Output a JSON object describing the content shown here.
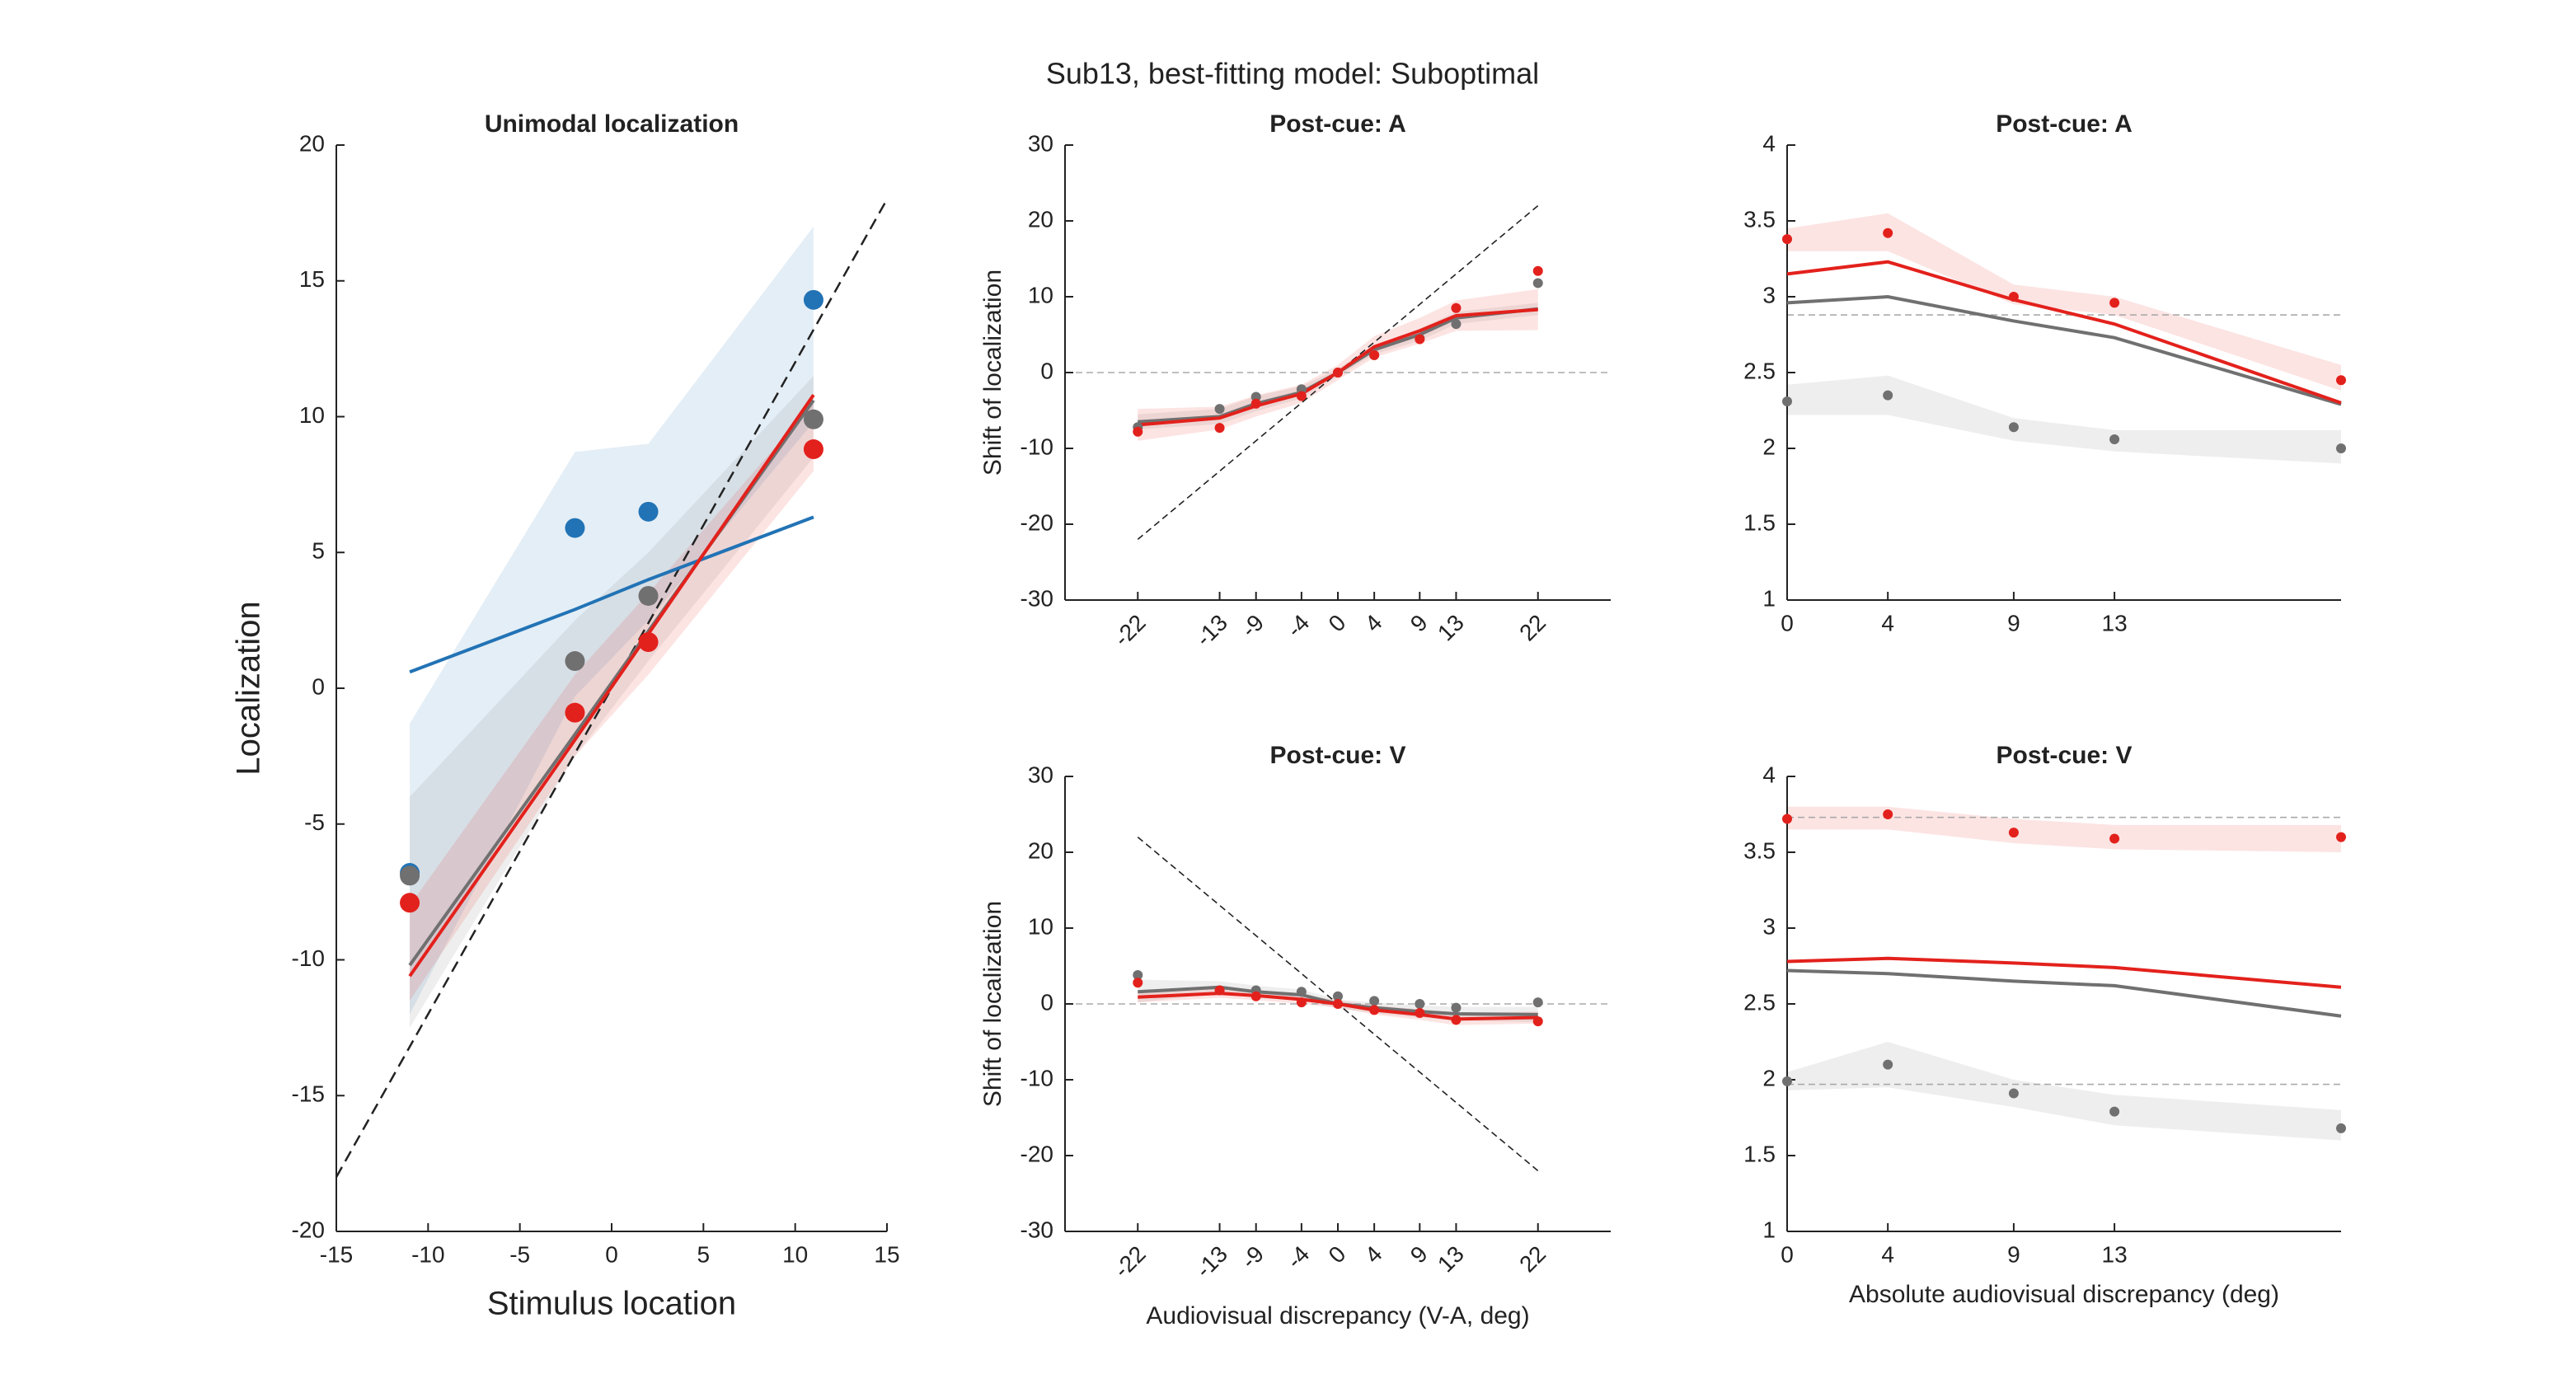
{
  "title": "Sub13, best-fitting model: Suboptimal",
  "chart_data": [
    {
      "type": "line",
      "title": "Unimodal localization",
      "xlabel": "Stimulus location",
      "ylabel": "Localization",
      "xlim": [
        -15,
        15
      ],
      "ylim": [
        -20,
        20
      ],
      "xticks": [
        -15,
        -10,
        -5,
        0,
        5,
        10,
        15
      ],
      "yticks": [
        -20,
        -15,
        -10,
        -5,
        0,
        5,
        10,
        15,
        20
      ],
      "x": [
        -11,
        -2,
        2,
        11
      ],
      "reference_lines": [
        {
          "x": [
            -15,
            15
          ],
          "y": [
            -18,
            18
          ]
        }
      ],
      "series": [
        {
          "color": "#2273b5",
          "points": [
            -6.8,
            5.9,
            6.5,
            14.3
          ],
          "fit": [
            0.6,
            2.9,
            4.0,
            6.3
          ],
          "band_upper": [
            -1.3,
            8.7,
            9.0,
            17.0
          ],
          "band_lower": [
            -12.0,
            -0.3,
            2.5,
            9.8
          ]
        },
        {
          "color": "#707070",
          "points": [
            -6.9,
            1.0,
            3.4,
            9.9
          ],
          "fit": [
            -10.2,
            -1.7,
            2.1,
            10.6
          ],
          "band_upper": [
            -4.0,
            2.5,
            5.0,
            11.5
          ],
          "band_lower": [
            -12.5,
            -2.5,
            1.0,
            8.5
          ]
        },
        {
          "color": "#e3211c",
          "points": [
            -7.9,
            -0.9,
            1.7,
            8.8
          ],
          "fit": [
            -10.6,
            -1.9,
            2.0,
            10.8
          ],
          "band_upper": [
            -8.0,
            0.5,
            3.5,
            10.5
          ],
          "band_lower": [
            -11.5,
            -2.5,
            0.5,
            8.0
          ]
        }
      ]
    },
    {
      "type": "line",
      "title": "Post-cue: A",
      "ylabel": "Shift of localization",
      "xlim": [
        -30,
        30
      ],
      "ylim": [
        -30,
        30
      ],
      "xticks": [
        -22,
        -13,
        -9,
        -4,
        0,
        4,
        9,
        13,
        22
      ],
      "xtick_rotation": 45,
      "yticks": [
        -30,
        -20,
        -10,
        0,
        10,
        20,
        30
      ],
      "x": [
        -22,
        -13,
        -9,
        -4,
        0,
        4,
        9,
        13,
        22
      ],
      "reference_lines": [
        {
          "x": [
            -30,
            30
          ],
          "y": [
            0,
            0
          ]
        },
        {
          "x": [
            -22,
            22
          ],
          "y": [
            -22,
            22
          ]
        }
      ],
      "series": [
        {
          "color": "#707070",
          "points": [
            -7.2,
            -4.8,
            -3.2,
            -2.2,
            0,
            2.3,
            4.5,
            6.4,
            11.8
          ],
          "fit": [
            -6.5,
            -5.8,
            -4.1,
            -2.6,
            0,
            3.0,
            5.0,
            7.2,
            8.4
          ],
          "band_upper": [
            -5.5,
            -4.8,
            -3.1,
            -1.8,
            0.5,
            3.6,
            5.8,
            8.0,
            9.2
          ],
          "band_lower": [
            -7.5,
            -6.8,
            -5.1,
            -3.4,
            -0.5,
            2.4,
            4.2,
            6.4,
            7.6
          ]
        },
        {
          "color": "#e3211c",
          "points": [
            -7.8,
            -7.3,
            -4.1,
            -3.1,
            0,
            2.3,
            4.4,
            8.5,
            13.4
          ],
          "fit": [
            -6.9,
            -6.0,
            -4.4,
            -2.8,
            0,
            3.4,
            5.5,
            7.5,
            8.3
          ],
          "band_upper": [
            -4.8,
            -4.5,
            -3.0,
            -1.6,
            1.0,
            4.8,
            7.2,
            9.5,
            11.0
          ],
          "band_lower": [
            -9.0,
            -7.5,
            -5.8,
            -4.0,
            -1.0,
            2.0,
            3.8,
            5.5,
            5.6
          ]
        }
      ]
    },
    {
      "type": "line",
      "title": "Post-cue: V",
      "xlabel": "Audiovisual discrepancy (V-A, deg)",
      "ylabel": "Shift of localization",
      "xlim": [
        -30,
        30
      ],
      "ylim": [
        -30,
        30
      ],
      "xticks": [
        -22,
        -13,
        -9,
        -4,
        0,
        4,
        9,
        13,
        22
      ],
      "xtick_rotation": 45,
      "yticks": [
        -30,
        -20,
        -10,
        0,
        10,
        20,
        30
      ],
      "x": [
        -22,
        -13,
        -9,
        -4,
        0,
        4,
        9,
        13,
        22
      ],
      "reference_lines": [
        {
          "x": [
            -30,
            30
          ],
          "y": [
            0,
            0
          ]
        },
        {
          "x": [
            -22,
            22
          ],
          "y": [
            22,
            -22
          ]
        }
      ],
      "series": [
        {
          "color": "#707070",
          "points": [
            3.8,
            1.8,
            1.8,
            1.6,
            1.0,
            0.4,
            0,
            -0.5,
            0.2
          ],
          "fit": [
            1.6,
            2.2,
            1.6,
            1.2,
            0,
            -0.5,
            -1.0,
            -1.3,
            -1.4
          ],
          "band_upper": [
            3.2,
            3.0,
            2.4,
            1.9,
            0.6,
            0.2,
            -0.2,
            -0.4,
            -0.4
          ],
          "band_lower": [
            0.2,
            1.4,
            0.8,
            0.5,
            -0.6,
            -1.2,
            -1.8,
            -2.2,
            -2.4
          ]
        },
        {
          "color": "#e3211c",
          "points": [
            2.8,
            1.8,
            1.0,
            0.2,
            0,
            -0.8,
            -1.2,
            -2.1,
            -2.3
          ],
          "fit": [
            0.9,
            1.4,
            1.1,
            0.6,
            0,
            -0.8,
            -1.4,
            -2.0,
            -1.8
          ],
          "band_upper": [
            1.6,
            2.0,
            1.7,
            1.2,
            0.5,
            -0.2,
            -0.7,
            -1.2,
            -1.0
          ],
          "band_lower": [
            0.2,
            0.8,
            0.5,
            0.0,
            -0.5,
            -1.4,
            -2.1,
            -2.8,
            -2.6
          ]
        }
      ]
    },
    {
      "type": "line",
      "title": "Post-cue: A",
      "xlim": [
        0,
        22
      ],
      "ylim": [
        1,
        4
      ],
      "xticks": [
        0,
        4,
        9,
        13
      ],
      "yticks": [
        1,
        1.5,
        2,
        2.5,
        3,
        3.5,
        4
      ],
      "x": [
        0,
        4,
        9,
        13,
        22
      ],
      "reference_lines": [
        {
          "x": [
            0,
            22
          ],
          "y": [
            2.88,
            2.88
          ]
        }
      ],
      "series": [
        {
          "color": "#707070",
          "points": [
            2.31,
            2.35,
            2.14,
            2.06,
            2.0
          ],
          "fit": [
            2.96,
            3.0,
            2.84,
            2.73,
            2.29
          ],
          "band_upper": [
            2.42,
            2.48,
            2.2,
            2.12,
            2.12
          ],
          "band_lower": [
            2.22,
            2.22,
            2.05,
            1.98,
            1.9
          ]
        },
        {
          "color": "#e3211c",
          "points": [
            3.38,
            3.42,
            3.0,
            2.96,
            2.45
          ],
          "fit": [
            3.15,
            3.23,
            2.98,
            2.82,
            2.3
          ],
          "band_upper": [
            3.45,
            3.55,
            3.08,
            3.0,
            2.55
          ],
          "band_lower": [
            3.3,
            3.3,
            2.95,
            2.88,
            2.38
          ]
        }
      ]
    },
    {
      "type": "line",
      "title": "Post-cue: V",
      "xlabel": "Absolute audiovisual discrepancy (deg)",
      "xlim": [
        0,
        22
      ],
      "ylim": [
        1,
        4
      ],
      "xticks": [
        0,
        4,
        9,
        13
      ],
      "yticks": [
        1,
        1.5,
        2,
        2.5,
        3,
        3.5,
        4
      ],
      "x": [
        0,
        4,
        9,
        13,
        22
      ],
      "reference_lines": [
        {
          "x": [
            0,
            22
          ],
          "y": [
            3.73,
            3.73
          ]
        },
        {
          "x": [
            0,
            22
          ],
          "y": [
            1.97,
            1.97
          ]
        }
      ],
      "series": [
        {
          "color": "#707070",
          "points": [
            1.99,
            2.1,
            1.91,
            1.79,
            1.68
          ],
          "fit": [
            2.72,
            2.7,
            2.65,
            2.62,
            2.42
          ],
          "band_upper": [
            2.05,
            2.25,
            2.0,
            1.9,
            1.8
          ],
          "band_lower": [
            1.93,
            1.95,
            1.82,
            1.7,
            1.6
          ]
        },
        {
          "color": "#e3211c",
          "points": [
            3.72,
            3.75,
            3.63,
            3.59,
            3.6
          ],
          "fit": [
            2.78,
            2.8,
            2.77,
            2.74,
            2.61
          ],
          "band_upper": [
            3.8,
            3.8,
            3.72,
            3.68,
            3.68
          ],
          "band_lower": [
            3.65,
            3.65,
            3.56,
            3.52,
            3.5
          ]
        }
      ]
    }
  ]
}
